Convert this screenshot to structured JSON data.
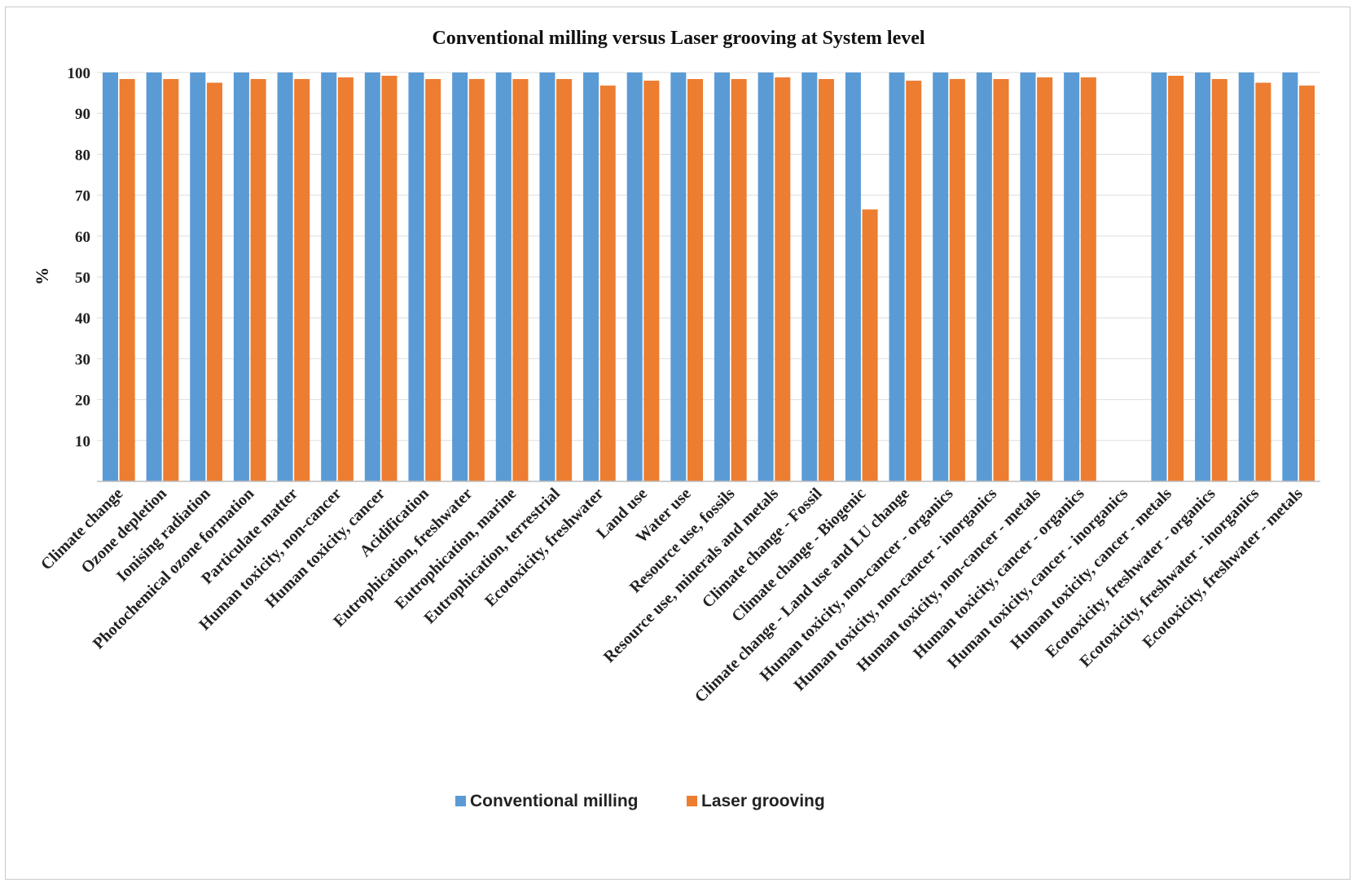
{
  "chart_data": {
    "type": "bar",
    "title": "Conventional milling versus Laser grooving at System level",
    "xlabel": "",
    "ylabel": "%",
    "ylim": [
      0,
      100
    ],
    "yticks": [
      10,
      20,
      30,
      40,
      50,
      60,
      70,
      80,
      90,
      100
    ],
    "grid": true,
    "legend_position": "bottom",
    "categories": [
      "Climate change",
      "Ozone depletion",
      "Ionising radiation",
      "Photochemical ozone formation",
      "Particulate matter",
      "Human toxicity, non-cancer",
      "Human toxicity, cancer",
      "Acidification",
      "Eutrophication, freshwater",
      "Eutrophication, marine",
      "Eutrophication, terrestrial",
      "Ecotoxicity, freshwater",
      "Land use",
      "Water use",
      "Resource use, fossils",
      "Resource use, minerals and metals",
      "Climate change - Fossil",
      "Climate change - Biogenic",
      "Climate change - Land use and LU change",
      "Human toxicity, non-cancer - organics",
      "Human toxicity, non-cancer - inorganics",
      "Human toxicity, non-cancer - metals",
      "Human toxicity, cancer - organics",
      "Human toxicity, cancer - inorganics",
      "Human toxicity, cancer - metals",
      "Ecotoxicity, freshwater - organics",
      "Ecotoxicity, freshwater - inorganics",
      "Ecotoxicity, freshwater - metals"
    ],
    "series": [
      {
        "name": "Conventional milling",
        "color": "#5b9bd5",
        "values": [
          100,
          100,
          100,
          100,
          100,
          100,
          100,
          100,
          100,
          100,
          100,
          100,
          100,
          100,
          100,
          100,
          100,
          100,
          100,
          100,
          100,
          100,
          100,
          0,
          100,
          100,
          100,
          100
        ]
      },
      {
        "name": "Laser grooving",
        "color": "#ed7d31",
        "values": [
          98.4,
          98.4,
          97.5,
          98.4,
          98.4,
          98.8,
          99.2,
          98.4,
          98.4,
          98.4,
          98.4,
          96.8,
          98.0,
          98.4,
          98.4,
          98.8,
          98.4,
          66.5,
          98.0,
          98.4,
          98.4,
          98.8,
          98.8,
          0,
          99.2,
          98.4,
          97.5,
          96.8
        ]
      }
    ]
  }
}
